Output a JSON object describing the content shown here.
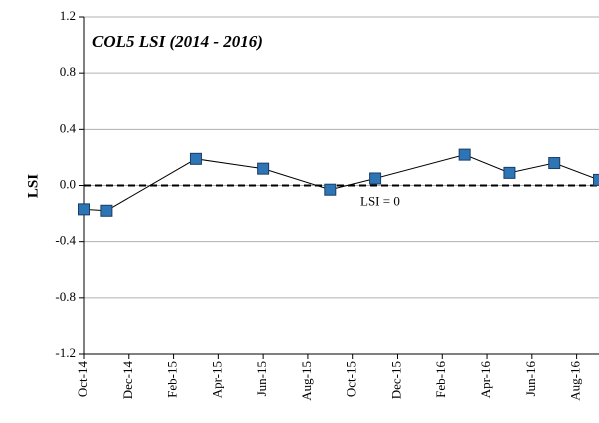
{
  "chart_data": {
    "type": "line",
    "title": "COL5 LSI (2014 - 2016)",
    "ylabel": "LSI",
    "x": [
      "2014-10",
      "2014-11",
      "2015-03",
      "2015-06",
      "2015-09",
      "2015-11",
      "2016-03",
      "2016-05",
      "2016-07",
      "2016-09"
    ],
    "series": [
      {
        "name": "LSI",
        "color": "#2e75b6",
        "values": [
          -0.17,
          -0.18,
          0.19,
          0.12,
          -0.03,
          0.05,
          0.22,
          0.09,
          0.16,
          0.04
        ]
      }
    ],
    "xlim": [
      "2014-10",
      "2016-09"
    ],
    "xticks": [
      {
        "value": "2014-10",
        "label": "Oct-14"
      },
      {
        "value": "2014-12",
        "label": "Dec-14"
      },
      {
        "value": "2015-02",
        "label": "Feb-15"
      },
      {
        "value": "2015-04",
        "label": "Apr-15"
      },
      {
        "value": "2015-06",
        "label": "Jun-15"
      },
      {
        "value": "2015-08",
        "label": "Aug-15"
      },
      {
        "value": "2015-10",
        "label": "Oct-15"
      },
      {
        "value": "2015-12",
        "label": "Dec-15"
      },
      {
        "value": "2016-02",
        "label": "Feb-16"
      },
      {
        "value": "2016-04",
        "label": "Apr-16"
      },
      {
        "value": "2016-06",
        "label": "Jun-16"
      },
      {
        "value": "2016-08",
        "label": "Aug-16"
      }
    ],
    "ylim": [
      -1.2,
      1.2
    ],
    "yticks": [
      1.2,
      0.8,
      0.4,
      {
        "value": 0,
        "label": "0.0"
      },
      -0.4,
      -0.8,
      -1.2
    ],
    "grid": true,
    "reference_line": {
      "value": 0,
      "label": "LSI = 0"
    }
  }
}
